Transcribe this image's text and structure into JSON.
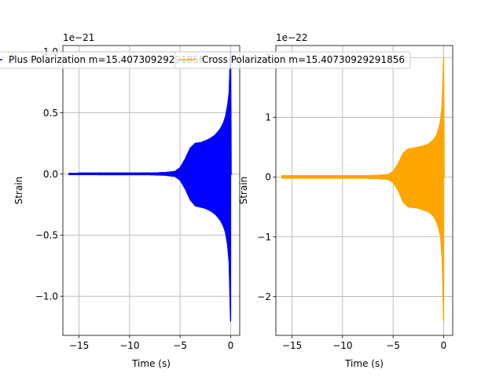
{
  "chart_data": [
    {
      "type": "line",
      "series": [
        {
          "name": "Plus Polarization m=15.40730929291856",
          "color": "#0000ff"
        }
      ],
      "xlabel": "Time (s)",
      "ylabel": "Strain",
      "offset_label": "1e−21",
      "scale": 1e-21,
      "xlim": [
        -16.6,
        0.9
      ],
      "ylim": [
        -1.32,
        1.05
      ],
      "xticks": [
        {
          "value": -15,
          "label": "−15"
        },
        {
          "value": -10,
          "label": "−10"
        },
        {
          "value": -5,
          "label": "−5"
        },
        {
          "value": 0,
          "label": "0"
        }
      ],
      "yticks": [
        {
          "value": -1.0,
          "label": "−1.0"
        },
        {
          "value": -0.5,
          "label": "−0.5"
        },
        {
          "value": 0.0,
          "label": "0.0"
        },
        {
          "value": 0.5,
          "label": "0.5"
        },
        {
          "value": 1.0,
          "label": "1.0"
        }
      ],
      "grid": true,
      "legend": "top-left",
      "envelope": {
        "t": [
          -16.0,
          -8.0,
          -6.5,
          -5.5,
          -5.0,
          -4.5,
          -4.0,
          -3.5,
          -3.0,
          -2.5,
          -2.0,
          -1.5,
          -1.0,
          -0.7,
          -0.5,
          -0.3,
          -0.15,
          -0.05,
          0.0
        ],
        "upper": [
          0.005,
          0.006,
          0.01,
          0.02,
          0.05,
          0.12,
          0.21,
          0.25,
          0.255,
          0.27,
          0.29,
          0.32,
          0.37,
          0.42,
          0.47,
          0.56,
          0.66,
          0.9,
          1.0
        ],
        "lower": [
          -0.005,
          -0.006,
          -0.01,
          -0.02,
          -0.05,
          -0.12,
          -0.21,
          -0.26,
          -0.27,
          -0.28,
          -0.3,
          -0.33,
          -0.38,
          -0.43,
          -0.48,
          -0.58,
          -0.72,
          -1.05,
          -1.22
        ]
      }
    },
    {
      "type": "line",
      "series": [
        {
          "name": "Cross Polarization m=15.40730929291856",
          "color": "#ffa500"
        }
      ],
      "xlabel": "Time (s)",
      "ylabel": "Strain",
      "offset_label": "1e−22",
      "scale": 1e-22,
      "xlim": [
        -16.6,
        0.9
      ],
      "ylim": [
        -2.65,
        2.2
      ],
      "xticks": [
        {
          "value": -15,
          "label": "−15"
        },
        {
          "value": -10,
          "label": "−10"
        },
        {
          "value": -5,
          "label": "−5"
        },
        {
          "value": 0,
          "label": "0"
        }
      ],
      "yticks": [
        {
          "value": -2,
          "label": "−2"
        },
        {
          "value": -1,
          "label": "−1"
        },
        {
          "value": 0,
          "label": "0"
        },
        {
          "value": 1,
          "label": "1"
        },
        {
          "value": 2,
          "label": "2"
        }
      ],
      "grid": true,
      "legend": "top-left",
      "envelope": {
        "t": [
          -16.0,
          -8.0,
          -6.5,
          -5.5,
          -5.0,
          -4.5,
          -4.0,
          -3.5,
          -3.0,
          -2.5,
          -2.0,
          -1.5,
          -1.0,
          -0.7,
          -0.5,
          -0.3,
          -0.15,
          -0.05,
          0.0
        ],
        "upper": [
          0.02,
          0.02,
          0.025,
          0.04,
          0.09,
          0.22,
          0.4,
          0.47,
          0.48,
          0.5,
          0.52,
          0.55,
          0.62,
          0.7,
          0.8,
          0.95,
          1.2,
          1.7,
          2.0
        ],
        "lower": [
          -0.02,
          -0.02,
          -0.025,
          -0.04,
          -0.09,
          -0.22,
          -0.42,
          -0.5,
          -0.51,
          -0.52,
          -0.55,
          -0.58,
          -0.65,
          -0.75,
          -0.85,
          -1.0,
          -1.35,
          -2.0,
          -2.45
        ]
      }
    }
  ]
}
